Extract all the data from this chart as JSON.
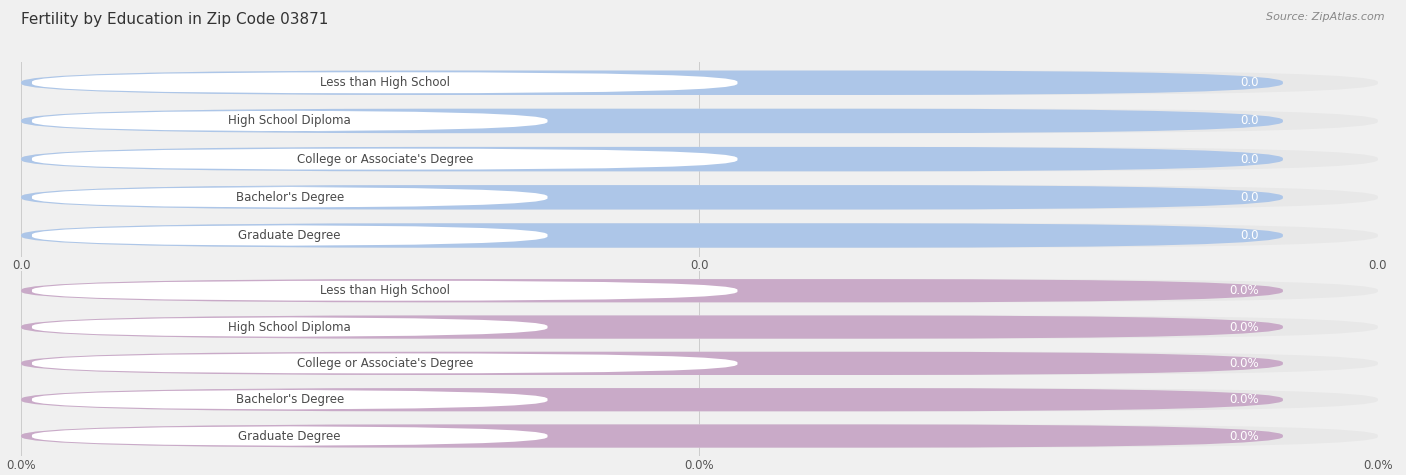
{
  "title": "Fertility by Education in Zip Code 03871",
  "source": "Source: ZipAtlas.com",
  "categories": [
    "Less than High School",
    "High School Diploma",
    "College or Associate's Degree",
    "Bachelor's Degree",
    "Graduate Degree"
  ],
  "values_top": [
    0.0,
    0.0,
    0.0,
    0.0,
    0.0
  ],
  "values_bottom": [
    0.0,
    0.0,
    0.0,
    0.0,
    0.0
  ],
  "bar_color_top": "#adc6e8",
  "bar_color_bottom": "#c9aac8",
  "bg_color": "#f0f0f0",
  "row_bg_color": "#e8e8e8",
  "label_bg_color": "#ffffff",
  "tick_label_top": [
    "0.0",
    "0.0",
    "0.0"
  ],
  "tick_label_bottom": [
    "0.0%",
    "0.0%",
    "0.0%"
  ],
  "title_fontsize": 11,
  "source_fontsize": 8,
  "bar_label_fontsize": 8.5,
  "value_fontsize": 8.5,
  "tick_fontsize": 8.5
}
